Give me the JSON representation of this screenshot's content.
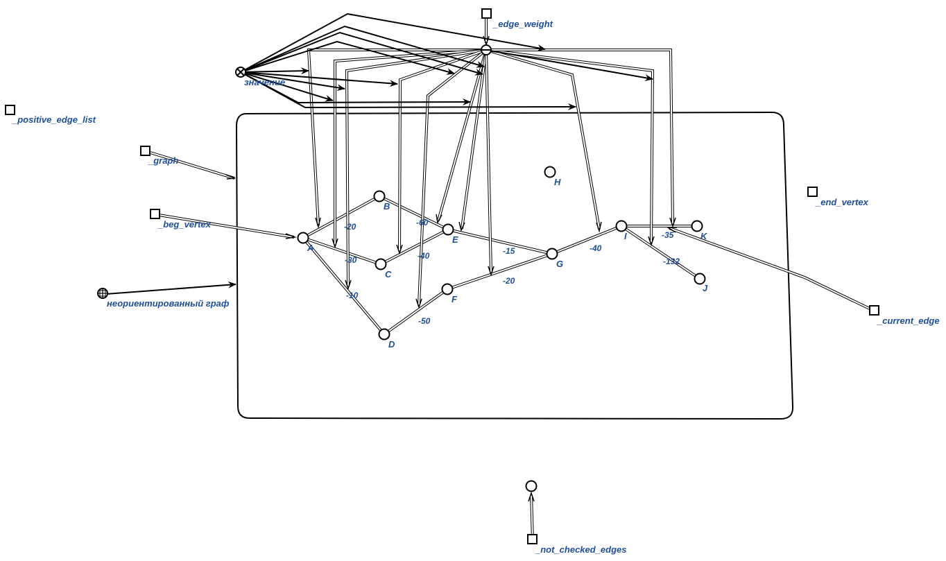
{
  "nodes": {
    "A": "A",
    "B": "B",
    "C": "C",
    "D": "D",
    "E": "E",
    "F": "F",
    "G": "G",
    "H": "H",
    "I": "I",
    "J": "J",
    "K": "K"
  },
  "edge_weights": {
    "AB": "-20",
    "AC": "-30",
    "AD": "-10",
    "BE": "-60",
    "CE": "-40",
    "DF": "-50",
    "EG": "-15",
    "FG": "-20",
    "GI": "-40",
    "IK": "-35",
    "IJ": "-132"
  },
  "labels": {
    "edge_weight": "_edge_weight",
    "value": "значение",
    "positive_edge_list": "_positive_edge_list",
    "graph": "_graph",
    "beg_vertex": "_beg_vertex",
    "undirected_graph": "неориентированный граф",
    "end_vertex": "_end_vertex",
    "current_edge": "_current_edge",
    "not_checked_edges": "_not_checked_edges"
  }
}
